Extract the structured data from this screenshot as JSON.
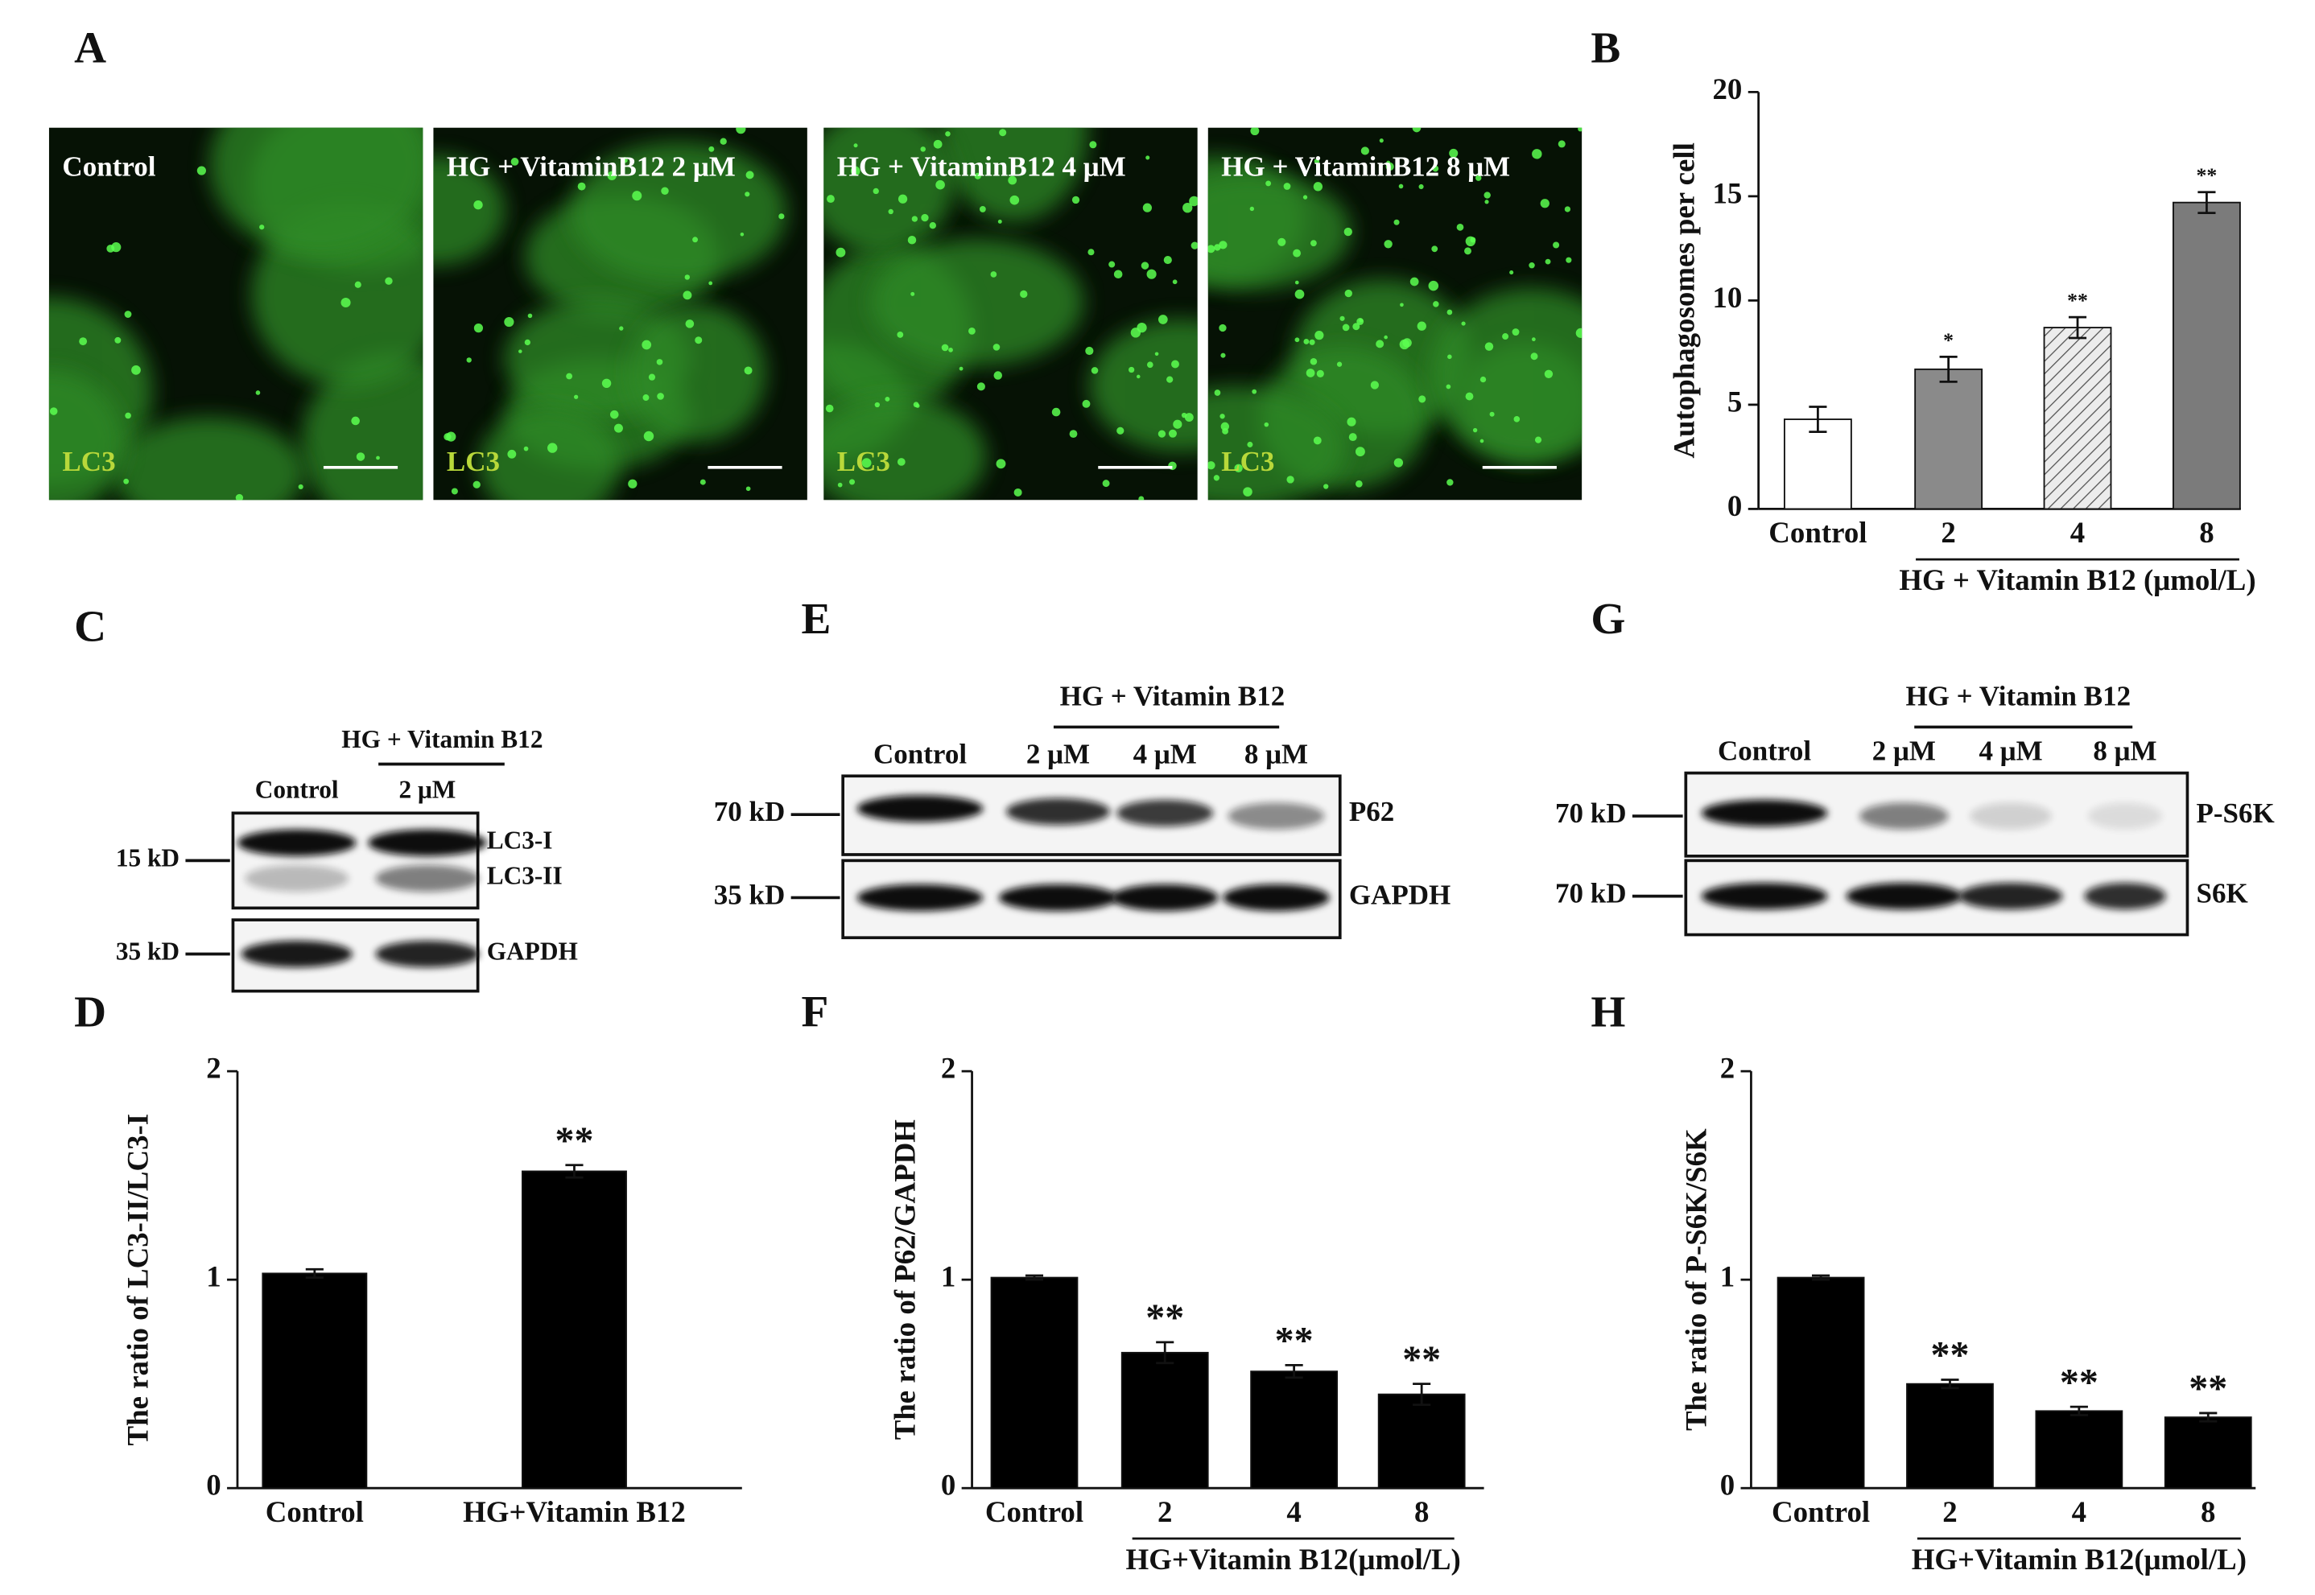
{
  "panel_labels": [
    "A",
    "B",
    "C",
    "D",
    "E",
    "F",
    "G",
    "H"
  ],
  "micrographs": [
    {
      "label": "Control",
      "marker": "LC3"
    },
    {
      "label": "HG + VitaminB12 2 μM",
      "marker": "LC3"
    },
    {
      "label": "HG + VitaminB12 4 μM",
      "marker": "LC3"
    },
    {
      "label": "HG + VitaminB12 8 μM",
      "marker": "LC3"
    }
  ],
  "blots": [
    {
      "header": "HG + Vitamin B12",
      "lanes": [
        "Control",
        "2 μM"
      ],
      "rows": [
        {
          "weight": "15 kD",
          "labels": [
            "LC3-I",
            "LC3-II"
          ]
        },
        {
          "weight": "35 kD",
          "labels": [
            "GAPDH"
          ]
        }
      ]
    },
    {
      "header": "HG + Vitamin B12",
      "lanes": [
        "Control",
        "2 μM",
        "4 μM",
        "8 μM"
      ],
      "rows": [
        {
          "weight": "70 kD",
          "labels": [
            "P62"
          ]
        },
        {
          "weight": "35 kD",
          "labels": [
            "GAPDH"
          ]
        }
      ]
    },
    {
      "header": "HG + Vitamin B12",
      "lanes": [
        "Control",
        "2 μM",
        "4 μM",
        "8 μM"
      ],
      "rows": [
        {
          "weight": "70 kD",
          "labels": [
            "P-S6K"
          ]
        },
        {
          "weight": "70 kD",
          "labels": [
            "S6K"
          ]
        }
      ]
    }
  ],
  "chart_data": [
    {
      "type": "bar",
      "ylabel": "Autophagosomes per cell",
      "categories": [
        "Control",
        "2",
        "4",
        "8"
      ],
      "group_label": "HG + Vitamin B12 (μmol/L)",
      "values": [
        4.3,
        6.7,
        8.7,
        14.7
      ],
      "errors": [
        0.6,
        0.6,
        0.5,
        0.5
      ],
      "annotations": [
        null,
        "*",
        "**",
        "**"
      ],
      "colors": [
        "#ffffff",
        "#8a8a8a",
        "#e6e6e6",
        "#7b7b7b"
      ],
      "hatch": [
        false,
        false,
        true,
        false
      ],
      "ylim": [
        0,
        20
      ],
      "yticks": [
        0,
        5,
        10,
        15,
        20
      ]
    },
    {
      "type": "bar",
      "ylabel": "The ratio of LC3-II/LC3-I",
      "categories": [
        "Control",
        "HG+Vitamin B12"
      ],
      "values": [
        1.03,
        1.52
      ],
      "errors": [
        0.02,
        0.03
      ],
      "annotations": [
        null,
        "**"
      ],
      "color": "#000000",
      "ylim": [
        0,
        2
      ],
      "yticks": [
        0,
        1,
        2
      ]
    },
    {
      "type": "bar",
      "ylabel": "The ratio of P62/GAPDH",
      "categories": [
        "Control",
        "2",
        "4",
        "8"
      ],
      "group_label": "HG+Vitamin B12(μmol/L)",
      "values": [
        1.01,
        0.65,
        0.56,
        0.45
      ],
      "errors": [
        0.01,
        0.05,
        0.03,
        0.05
      ],
      "annotations": [
        null,
        "**",
        "**",
        "**"
      ],
      "color": "#000000",
      "ylim": [
        0,
        2
      ],
      "yticks": [
        0,
        1,
        2
      ]
    },
    {
      "type": "bar",
      "ylabel": "The ratio of P-S6K/S6K",
      "categories": [
        "Control",
        "2",
        "4",
        "8"
      ],
      "group_label": "HG+Vitamin B12(μmol/L)",
      "values": [
        1.01,
        0.5,
        0.37,
        0.34
      ],
      "errors": [
        0.01,
        0.02,
        0.02,
        0.02
      ],
      "annotations": [
        null,
        "**",
        "**",
        "**"
      ],
      "color": "#000000",
      "ylim": [
        0,
        2
      ],
      "yticks": [
        0,
        1,
        2
      ]
    }
  ]
}
